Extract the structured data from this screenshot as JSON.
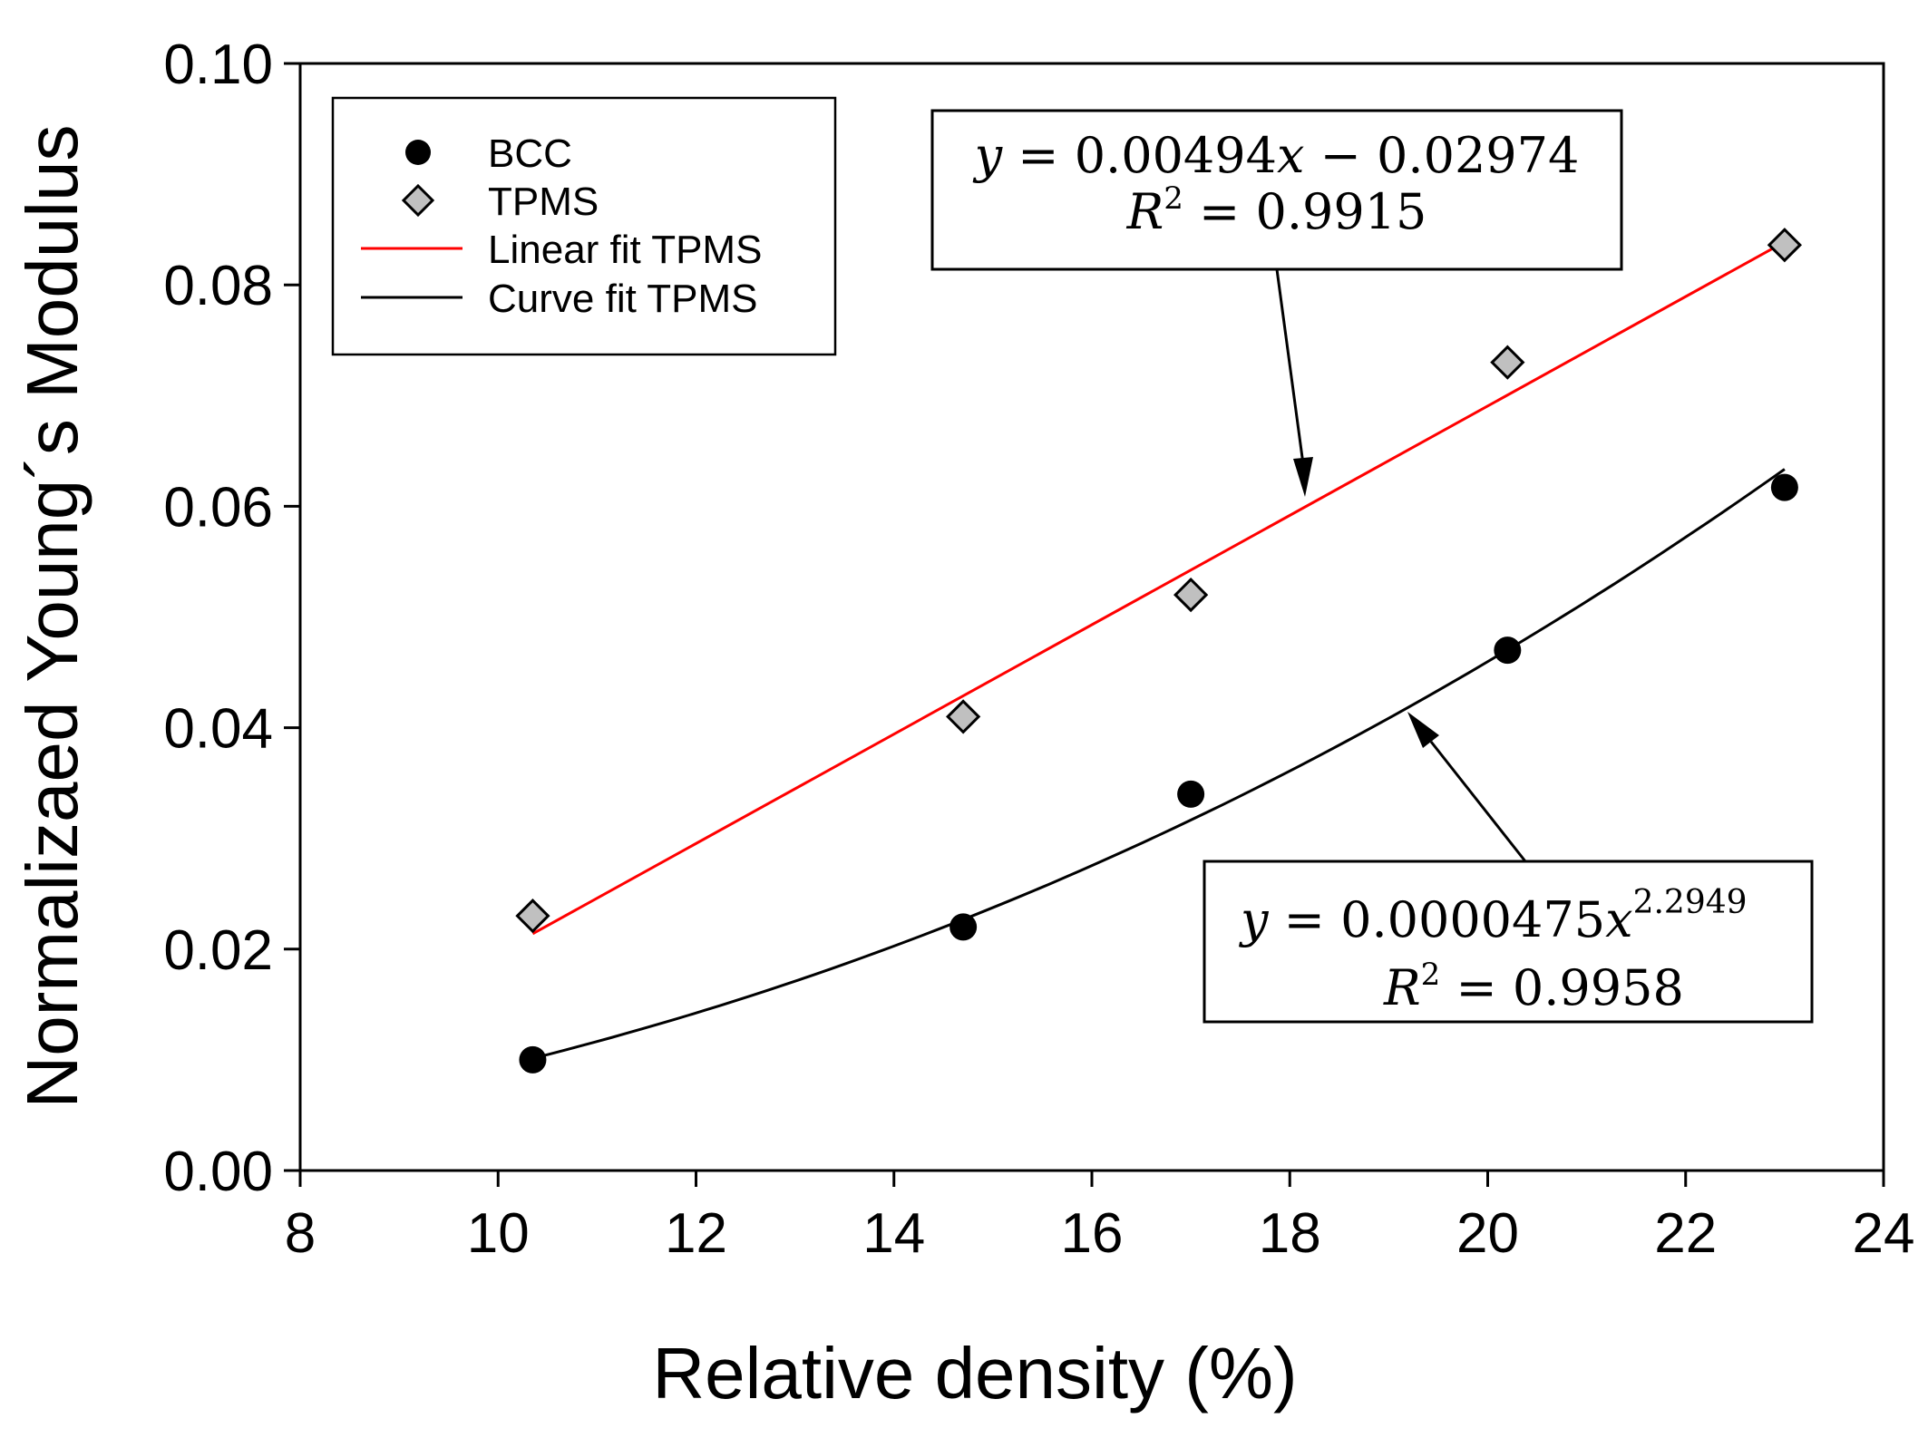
{
  "chart_data": {
    "type": "scatter",
    "title": "",
    "xlabel": "Relative density (%)",
    "ylabel": "Normalizaed Young´s Modulus",
    "xlim": [
      8,
      24
    ],
    "ylim": [
      0.0,
      0.1
    ],
    "x_ticks": [
      8,
      10,
      12,
      14,
      16,
      18,
      20,
      22,
      24
    ],
    "x_tick_labels": [
      "8",
      "10",
      "12",
      "14",
      "16",
      "18",
      "20",
      "22",
      "24"
    ],
    "y_ticks": [
      0.0,
      0.02,
      0.04,
      0.06,
      0.08,
      0.1
    ],
    "y_tick_labels": [
      "0.00",
      "0.02",
      "0.04",
      "0.06",
      "0.08",
      "0.10"
    ],
    "grid": false,
    "legend_position": "top-left",
    "series": [
      {
        "name": "BCC",
        "kind": "scatter",
        "marker": "circle",
        "color": "#000000",
        "points": [
          [
            10.35,
            0.01
          ],
          [
            14.7,
            0.022
          ],
          [
            17.0,
            0.034
          ],
          [
            20.2,
            0.047
          ],
          [
            23.0,
            0.0617
          ]
        ]
      },
      {
        "name": "TPMS",
        "kind": "scatter",
        "marker": "diamond",
        "color": "#c0c0c0",
        "points": [
          [
            10.35,
            0.023
          ],
          [
            14.7,
            0.041
          ],
          [
            17.0,
            0.052
          ],
          [
            20.2,
            0.073
          ],
          [
            23.0,
            0.0836
          ]
        ]
      },
      {
        "name": "Linear fit TPMS",
        "kind": "line",
        "color": "#ff0000",
        "x_range": [
          10.35,
          23.0
        ],
        "slope": 0.00494,
        "intercept": -0.02974
      },
      {
        "name": "Curve fit TPMS",
        "kind": "line",
        "color": "#000000",
        "x_range": [
          10.35,
          23.0
        ],
        "coefficient": 4.75e-05,
        "exponent": 2.2949
      }
    ],
    "annotations": [
      {
        "id": "linear",
        "eq_parts": [
          "y",
          " = 0.00494",
          "x",
          " − 0.02974"
        ],
        "r2_label": "R",
        "r2_exp": "2",
        "r2_value": " = 0.9915",
        "arrow_to": [
          18.15,
          0.0605
        ]
      },
      {
        "id": "power",
        "eq_parts": [
          "y",
          " = 0.0000475",
          "x"
        ],
        "eq_exp": "2.2949",
        "r2_label": "R",
        "r2_exp": "2",
        "r2_value": " = 0.9958",
        "arrow_to": [
          19.2,
          0.0415
        ]
      }
    ]
  }
}
